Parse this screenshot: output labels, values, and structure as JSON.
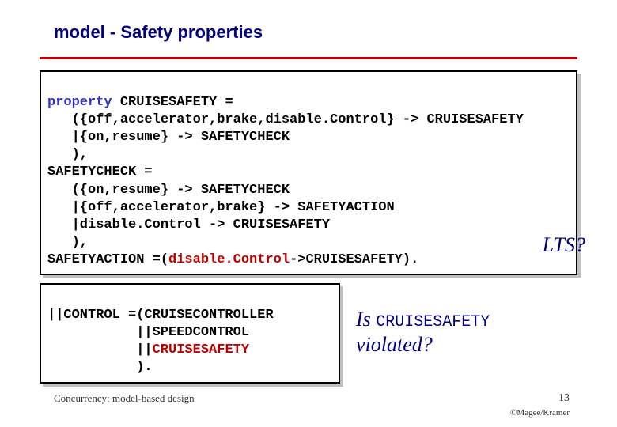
{
  "title": "model  - Safety properties",
  "code1": {
    "l1a": "property",
    "l1b": " CRUISESAFETY =",
    "l2": "   ({off,accelerator,brake,disable.Control} -> CRUISESAFETY",
    "l3": "   |{on,resume} -> SAFETYCHECK",
    "l4": "   ),",
    "l5": "SAFETYCHECK =",
    "l6": "   ({on,resume} -> SAFETYCHECK",
    "l7": "   |{off,accelerator,brake} -> SAFETYACTION",
    "l8": "   |disable.Control -> CRUISESAFETY",
    "l9": "   ),",
    "l10a": "SAFETYACTION",
    "l10b": " =(",
    "l10c": "disable.Control",
    "l10d": "->CRUISESAFETY)."
  },
  "lts": "LTS?",
  "code2": {
    "l1": "||CONTROL =(CRUISECONTROLLER",
    "l2": "           ||SPEEDCONTROL",
    "l3a": "           ||",
    "l3b": "CRUISESAFETY",
    "l4": "           )."
  },
  "question": {
    "a": "Is ",
    "b": "CRUISESAFETY",
    "c": " violated?"
  },
  "footer": "Concurrency: model-based design",
  "page": "13",
  "copyright": "©Magee/Kramer"
}
